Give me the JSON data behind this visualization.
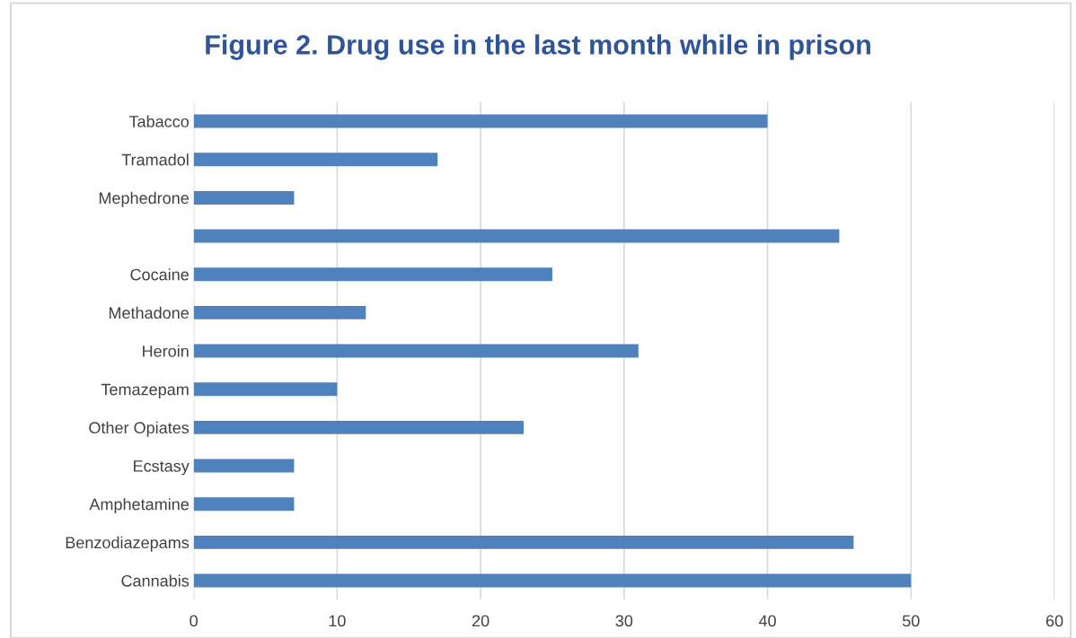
{
  "chart_data": {
    "type": "bar",
    "orientation": "horizontal",
    "title": "Figure 2. Drug use in the last month while in prison",
    "categories": [
      "Tabacco",
      "Tramadol",
      "Mephedrone",
      null,
      "Cocaine",
      "Methadone",
      "Heroin",
      "Temazepam",
      "Other Opiates",
      "Ecstasy",
      "Amphetamine",
      "Benzodiazepams",
      "Cannabis"
    ],
    "values": [
      40,
      17,
      7,
      45,
      25,
      12,
      31,
      10,
      23,
      7,
      7,
      46,
      50
    ],
    "color": "#4f81bd",
    "xlim": [
      0,
      60
    ],
    "xticks": [
      0,
      10,
      20,
      30,
      40,
      50,
      60
    ],
    "grid": "x"
  }
}
